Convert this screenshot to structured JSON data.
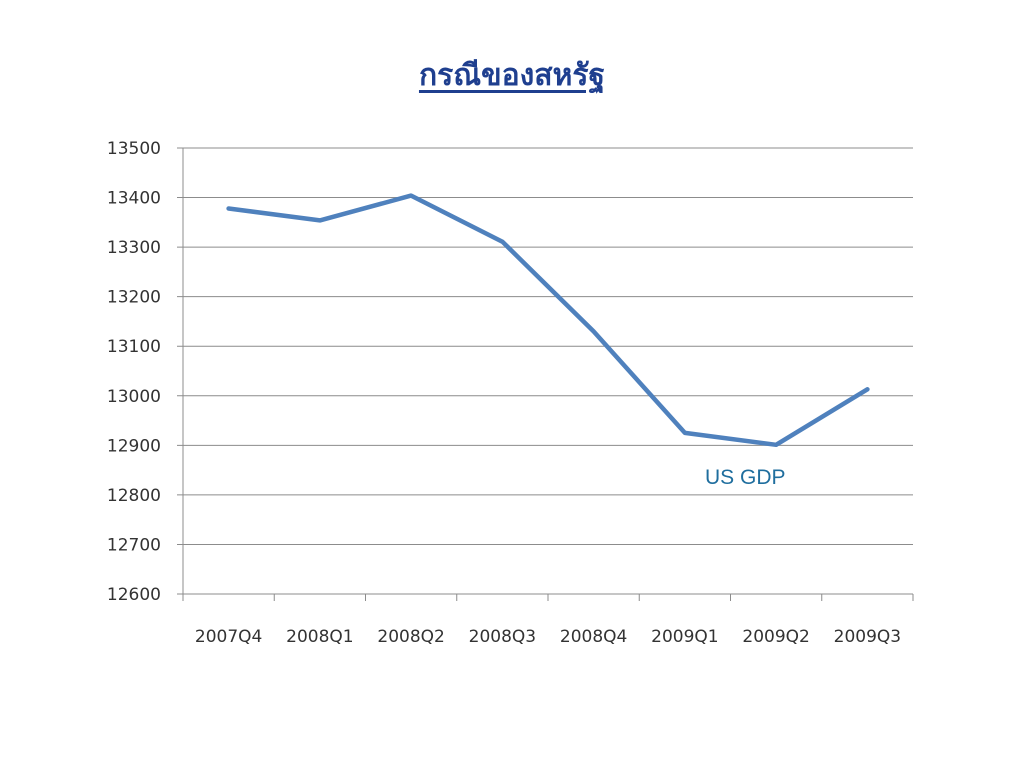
{
  "slide": {
    "title": "กรณีของสหรัฐ"
  },
  "chart_data": {
    "type": "line",
    "categories": [
      "2007Q4",
      "2008Q1",
      "2008Q2",
      "2008Q3",
      "2008Q4",
      "2009Q1",
      "2009Q2",
      "2009Q3"
    ],
    "series": [
      {
        "name": "US GDP",
        "values": [
          13378,
          13354,
          13404,
          13311,
          13130,
          12925,
          12901,
          13013
        ],
        "color": "#4f81bd"
      }
    ],
    "ylim": [
      12600,
      13500
    ],
    "yticks": [
      12600,
      12700,
      12800,
      12900,
      13000,
      13100,
      13200,
      13300,
      13400,
      13500
    ],
    "grid": true,
    "legend": "none",
    "annotation": "US GDP"
  }
}
